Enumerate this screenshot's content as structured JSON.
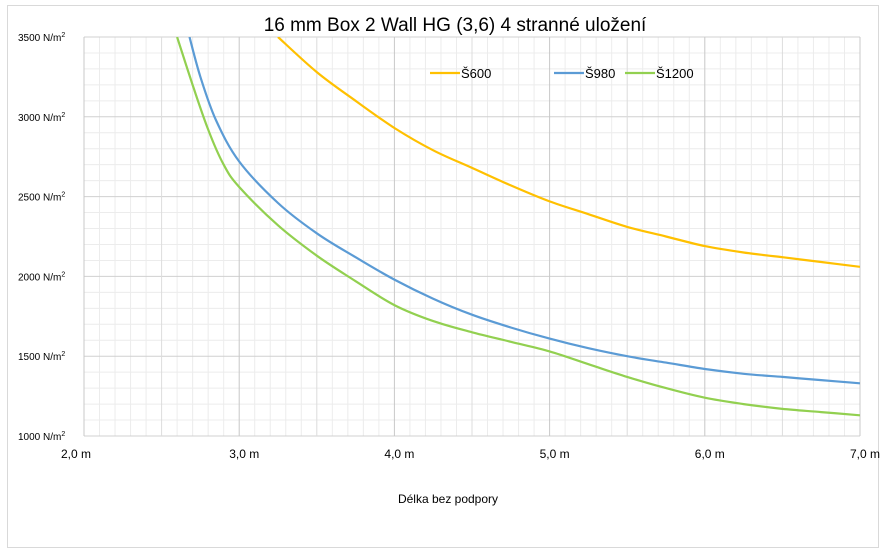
{
  "chart_data": {
    "type": "line",
    "title": "16 mm Box 2 Wall HG (3,6) 4 stranné uložení",
    "xlabel": "Délka bez podpory",
    "ylabel": "",
    "xlim": [
      2.0,
      7.0
    ],
    "ylim": [
      1000,
      3500
    ],
    "x_ticks": [
      2.0,
      2.5,
      3.0,
      3.5,
      4.0,
      4.5,
      5.0,
      5.5,
      6.0,
      6.5,
      7.0
    ],
    "x_tick_labels": [
      {
        "value": 2.0,
        "label": "2,0 m"
      },
      {
        "value": 3.0,
        "label": "3,0 m"
      },
      {
        "value": 4.0,
        "label": "4,0 m"
      },
      {
        "value": 5.0,
        "label": "5,0 m"
      },
      {
        "value": 6.0,
        "label": "6,0 m"
      },
      {
        "value": 7.0,
        "label": "7,0 m"
      }
    ],
    "y_tick_labels": [
      {
        "value": 3500,
        "label": "3500 N/m²"
      },
      {
        "value": 3000,
        "label": "3000 N/m²"
      },
      {
        "value": 2500,
        "label": "2500 N/m²"
      },
      {
        "value": 2000,
        "label": "2000 N/m²"
      },
      {
        "value": 1500,
        "label": "1500 N/m²"
      },
      {
        "value": 1000,
        "label": "1000 N/m²"
      }
    ],
    "grid": true,
    "legend_position": "top-right",
    "series": [
      {
        "name": "Š600",
        "color": "#FFC000",
        "x": [
          3.25,
          3.5,
          3.75,
          4.0,
          4.25,
          4.5,
          4.75,
          5.0,
          5.25,
          5.5,
          5.75,
          6.0,
          6.25,
          6.5,
          6.75,
          7.0
        ],
        "y": [
          3500,
          3280,
          3100,
          2930,
          2790,
          2680,
          2570,
          2470,
          2390,
          2310,
          2250,
          2190,
          2150,
          2120,
          2090,
          2060
        ]
      },
      {
        "name": "Š980",
        "color": "#5B9BD5",
        "x": [
          2.68,
          2.75,
          2.85,
          3.0,
          3.25,
          3.5,
          3.75,
          4.0,
          4.25,
          4.5,
          4.75,
          5.0,
          5.25,
          5.5,
          5.75,
          6.0,
          6.25,
          6.5,
          6.75,
          7.0
        ],
        "y": [
          3500,
          3250,
          2980,
          2720,
          2460,
          2270,
          2120,
          1980,
          1860,
          1760,
          1680,
          1610,
          1550,
          1500,
          1460,
          1420,
          1390,
          1370,
          1350,
          1330
        ]
      },
      {
        "name": "Š1200",
        "color": "#92D050",
        "x": [
          2.6,
          2.7,
          2.8,
          2.9,
          3.0,
          3.25,
          3.5,
          3.75,
          4.0,
          4.25,
          4.5,
          4.75,
          5.0,
          5.25,
          5.5,
          5.75,
          6.0,
          6.25,
          6.5,
          6.75,
          7.0
        ],
        "y": [
          3500,
          3200,
          2920,
          2700,
          2560,
          2320,
          2130,
          1970,
          1820,
          1720,
          1650,
          1590,
          1530,
          1450,
          1370,
          1300,
          1240,
          1200,
          1170,
          1150,
          1130
        ]
      }
    ]
  }
}
